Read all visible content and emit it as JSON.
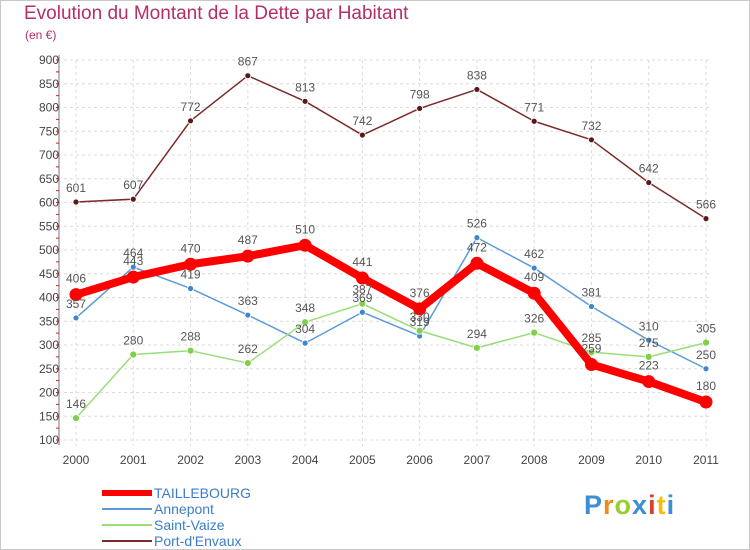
{
  "title": "Evolution du Montant de la Dette par Habitant",
  "subtitle": "(en €)",
  "brand": "Proxiti",
  "chart_data": {
    "type": "line",
    "title": "Evolution du Montant de la Dette par Habitant",
    "ylabel": "(en €)",
    "xlabel": "",
    "ylim": [
      100,
      900
    ],
    "yticks": [
      100,
      150,
      200,
      250,
      300,
      350,
      400,
      450,
      500,
      550,
      600,
      650,
      700,
      750,
      800,
      850,
      900
    ],
    "categories": [
      "2000",
      "2001",
      "2002",
      "2003",
      "2004",
      "2005",
      "2006",
      "2007",
      "2008",
      "2009",
      "2010",
      "2011"
    ],
    "grid": true,
    "legend_position": "bottom-left",
    "series": [
      {
        "name": "TAILLEBOURG",
        "color": "#ff0000",
        "values": [
          406,
          443,
          470,
          487,
          510,
          441,
          376,
          472,
          409,
          259,
          223,
          180
        ]
      },
      {
        "name": "Annepont",
        "color": "#5b9bd5",
        "values": [
          357,
          464,
          419,
          363,
          304,
          369,
          319,
          526,
          462,
          381,
          310,
          250
        ]
      },
      {
        "name": "Saint-Vaize",
        "color": "#99dd77",
        "values": [
          146,
          280,
          288,
          262,
          348,
          387,
          330,
          294,
          326,
          285,
          275,
          305
        ]
      },
      {
        "name": "Port-d'Envaux",
        "color": "#7a2a2a",
        "values": [
          601,
          607,
          772,
          867,
          813,
          742,
          798,
          838,
          771,
          732,
          642,
          566
        ]
      }
    ],
    "data_labels": {
      "TAILLEBOURG": [
        "406",
        "443",
        "470",
        "487",
        "510",
        "441",
        "376",
        "472",
        "409",
        "259",
        "223",
        "180"
      ],
      "Annepont": [
        "357",
        "464",
        "419",
        "363",
        "304",
        "369",
        "319",
        "526",
        "462",
        "381",
        "310",
        "250"
      ],
      "Saint-Vaize": [
        "146",
        "280",
        "288",
        "262",
        "348",
        "387",
        "330",
        "294",
        "326",
        "285",
        "275",
        "305"
      ],
      "Port-d'Envaux": [
        "601",
        "607",
        "772",
        "867",
        "813",
        "742",
        "798",
        "838",
        "771",
        "732",
        "642",
        "566"
      ]
    }
  }
}
